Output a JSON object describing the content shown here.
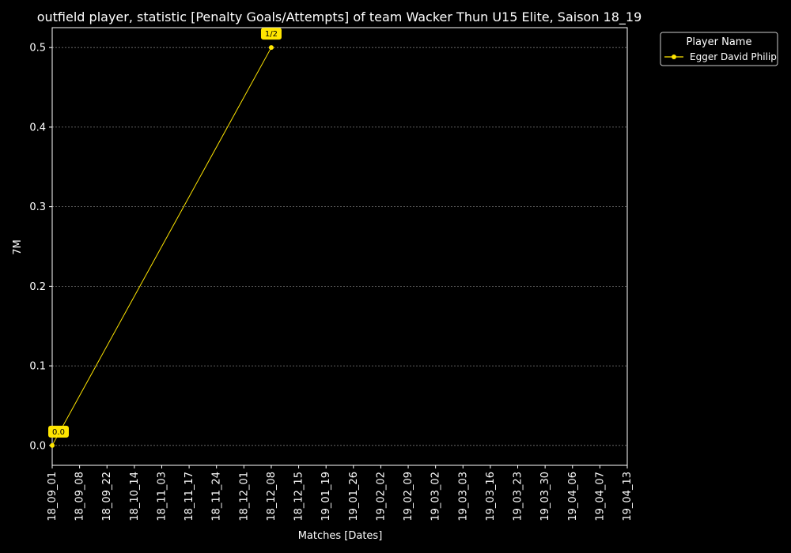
{
  "chart_data": {
    "type": "line",
    "title": "outfield player, statistic [Penalty Goals/Attempts] of team Wacker Thun U15 Elite, Saison 18_19",
    "xlabel": "Matches [Dates]",
    "ylabel": "7M",
    "categories": [
      "18_09_01",
      "18_09_08",
      "18_09_22",
      "18_10_14",
      "18_11_03",
      "18_11_17",
      "18_11_24",
      "18_12_01",
      "18_12_08",
      "18_12_15",
      "19_01_19",
      "19_01_26",
      "19_02_02",
      "19_02_09",
      "19_03_02",
      "19_03_03",
      "19_03_16",
      "19_03_23",
      "19_03_30",
      "19_04_06",
      "19_04_07",
      "19_04_13"
    ],
    "ylim": [
      -0.025,
      0.525
    ],
    "yticks": [
      0.0,
      0.1,
      0.2,
      0.3,
      0.4,
      0.5
    ],
    "ytick_labels": [
      "0.0",
      "0.1",
      "0.2",
      "0.3",
      "0.4",
      "0.5"
    ],
    "grid": true,
    "legend": {
      "title": "Player Name",
      "placement": "outside-top-right"
    },
    "series": [
      {
        "name": "Egger David Philip",
        "color": "#ffe600",
        "points": [
          {
            "x": "18_09_01",
            "y": 0.0,
            "label": "0.0"
          },
          {
            "x": "18_12_08",
            "y": 0.5,
            "label": "1/2"
          }
        ]
      }
    ]
  }
}
